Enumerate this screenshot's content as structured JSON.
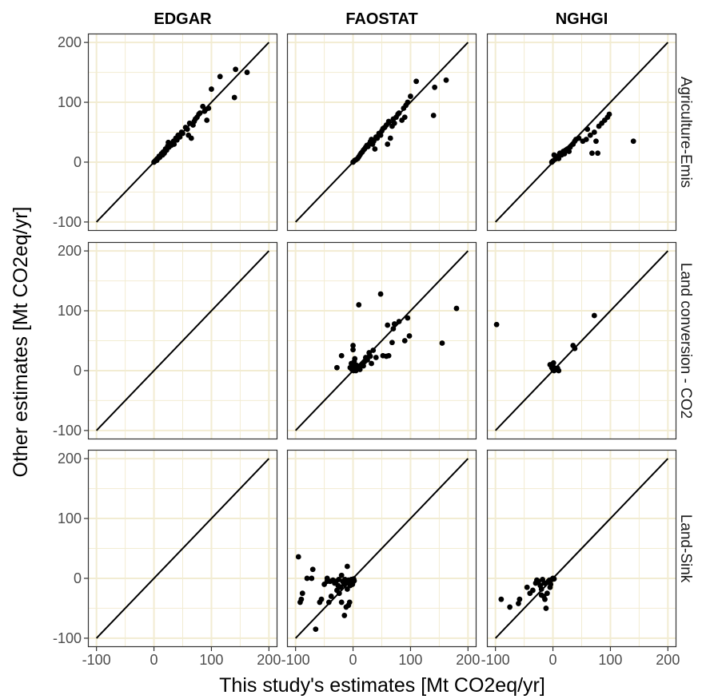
{
  "chart_data": {
    "type": "scatter",
    "xlabel": "This study's estimates [Mt CO2eq/yr]",
    "ylabel": "Other estimates [Mt CO2eq/yr]",
    "xlim": [
      -100,
      200
    ],
    "ylim": [
      -100,
      200
    ],
    "x_ticks": [
      -100,
      0,
      100,
      200
    ],
    "y_ticks": [
      -100,
      0,
      100,
      200
    ],
    "grid": true,
    "reference_line": "y = x",
    "columns": [
      "EDGAR",
      "FAOSTAT",
      "NGHGI"
    ],
    "rows": [
      "Agriculture-Emis",
      "Land conversion - CO2",
      "Land-Sink"
    ],
    "colors": {
      "grid": "#f2ecd2",
      "points": "#000000",
      "border": "#333333"
    },
    "panels": [
      {
        "row": 0,
        "col": 0,
        "points": [
          [
            0,
            0
          ],
          [
            2,
            2
          ],
          [
            4,
            4
          ],
          [
            5,
            3
          ],
          [
            6,
            6
          ],
          [
            8,
            7
          ],
          [
            9,
            10
          ],
          [
            10,
            8
          ],
          [
            12,
            11
          ],
          [
            13,
            14
          ],
          [
            15,
            12
          ],
          [
            16,
            17
          ],
          [
            18,
            15
          ],
          [
            20,
            22
          ],
          [
            22,
            20
          ],
          [
            24,
            27
          ],
          [
            25,
            33
          ],
          [
            26,
            25
          ],
          [
            28,
            30
          ],
          [
            30,
            28
          ],
          [
            32,
            32
          ],
          [
            34,
            35
          ],
          [
            35,
            30
          ],
          [
            38,
            40
          ],
          [
            40,
            37
          ],
          [
            42,
            45
          ],
          [
            45,
            42
          ],
          [
            48,
            50
          ],
          [
            50,
            48
          ],
          [
            55,
            58
          ],
          [
            58,
            55
          ],
          [
            60,
            45
          ],
          [
            62,
            65
          ],
          [
            65,
            40
          ],
          [
            68,
            62
          ],
          [
            70,
            68
          ],
          [
            72,
            72
          ],
          [
            75,
            75
          ],
          [
            78,
            80
          ],
          [
            80,
            82
          ],
          [
            85,
            93
          ],
          [
            88,
            85
          ],
          [
            90,
            88
          ],
          [
            92,
            70
          ],
          [
            95,
            90
          ],
          [
            100,
            122
          ],
          [
            115,
            143
          ],
          [
            140,
            108
          ],
          [
            142,
            155
          ],
          [
            162,
            150
          ]
        ]
      },
      {
        "row": 0,
        "col": 1,
        "points": [
          [
            0,
            0
          ],
          [
            3,
            3
          ],
          [
            5,
            4
          ],
          [
            8,
            6
          ],
          [
            10,
            9
          ],
          [
            12,
            12
          ],
          [
            14,
            15
          ],
          [
            16,
            17
          ],
          [
            18,
            20
          ],
          [
            20,
            22
          ],
          [
            22,
            25
          ],
          [
            24,
            28
          ],
          [
            26,
            26
          ],
          [
            28,
            30
          ],
          [
            30,
            34
          ],
          [
            32,
            38
          ],
          [
            34,
            30
          ],
          [
            36,
            35
          ],
          [
            38,
            22
          ],
          [
            40,
            42
          ],
          [
            42,
            40
          ],
          [
            45,
            48
          ],
          [
            48,
            45
          ],
          [
            50,
            52
          ],
          [
            52,
            56
          ],
          [
            55,
            58
          ],
          [
            58,
            62
          ],
          [
            60,
            30
          ],
          [
            62,
            68
          ],
          [
            65,
            40
          ],
          [
            68,
            60
          ],
          [
            70,
            72
          ],
          [
            72,
            65
          ],
          [
            75,
            75
          ],
          [
            78,
            80
          ],
          [
            80,
            82
          ],
          [
            85,
            70
          ],
          [
            88,
            90
          ],
          [
            90,
            75
          ],
          [
            92,
            95
          ],
          [
            95,
            100
          ],
          [
            100,
            110
          ],
          [
            110,
            135
          ],
          [
            140,
            78
          ],
          [
            142,
            125
          ],
          [
            162,
            137
          ]
        ]
      },
      {
        "row": 0,
        "col": 2,
        "points": [
          [
            -2,
            0
          ],
          [
            0,
            2
          ],
          [
            2,
            12
          ],
          [
            4,
            5
          ],
          [
            5,
            8
          ],
          [
            8,
            10
          ],
          [
            10,
            6
          ],
          [
            12,
            15
          ],
          [
            15,
            12
          ],
          [
            18,
            18
          ],
          [
            20,
            14
          ],
          [
            22,
            20
          ],
          [
            25,
            22
          ],
          [
            28,
            18
          ],
          [
            30,
            25
          ],
          [
            35,
            30
          ],
          [
            38,
            35
          ],
          [
            40,
            38
          ],
          [
            45,
            40
          ],
          [
            52,
            35
          ],
          [
            58,
            38
          ],
          [
            60,
            55
          ],
          [
            65,
            45
          ],
          [
            68,
            15
          ],
          [
            72,
            50
          ],
          [
            75,
            35
          ],
          [
            78,
            15
          ],
          [
            80,
            60
          ],
          [
            85,
            65
          ],
          [
            90,
            70
          ],
          [
            95,
            75
          ],
          [
            98,
            80
          ],
          [
            140,
            35
          ]
        ]
      },
      {
        "row": 1,
        "col": 0,
        "points": []
      },
      {
        "row": 1,
        "col": 1,
        "points": [
          [
            -28,
            5
          ],
          [
            -20,
            25
          ],
          [
            -5,
            5
          ],
          [
            -3,
            12
          ],
          [
            -2,
            2
          ],
          [
            -1,
            8
          ],
          [
            0,
            42
          ],
          [
            0,
            35
          ],
          [
            1,
            0
          ],
          [
            2,
            15
          ],
          [
            3,
            20
          ],
          [
            4,
            6
          ],
          [
            5,
            0
          ],
          [
            6,
            9
          ],
          [
            8,
            3
          ],
          [
            10,
            5
          ],
          [
            10,
            110
          ],
          [
            12,
            2
          ],
          [
            15,
            10
          ],
          [
            18,
            8
          ],
          [
            20,
            15
          ],
          [
            22,
            22
          ],
          [
            25,
            18
          ],
          [
            28,
            30
          ],
          [
            30,
            24
          ],
          [
            32,
            12
          ],
          [
            35,
            34
          ],
          [
            40,
            22
          ],
          [
            48,
            128
          ],
          [
            52,
            25
          ],
          [
            58,
            24
          ],
          [
            60,
            76
          ],
          [
            62,
            25
          ],
          [
            68,
            47
          ],
          [
            70,
            70
          ],
          [
            72,
            78
          ],
          [
            80,
            82
          ],
          [
            90,
            50
          ],
          [
            95,
            88
          ],
          [
            98,
            58
          ],
          [
            155,
            46
          ],
          [
            180,
            104
          ]
        ]
      },
      {
        "row": 1,
        "col": 2,
        "points": [
          [
            -98,
            77
          ],
          [
            -5,
            10
          ],
          [
            -2,
            5
          ],
          [
            0,
            2
          ],
          [
            0,
            8
          ],
          [
            1,
            13
          ],
          [
            2,
            0
          ],
          [
            3,
            4
          ],
          [
            5,
            2
          ],
          [
            8,
            4
          ],
          [
            10,
            0
          ],
          [
            35,
            42
          ],
          [
            38,
            37
          ],
          [
            72,
            92
          ]
        ]
      },
      {
        "row": 2,
        "col": 0,
        "points": []
      },
      {
        "row": 2,
        "col": 1,
        "points": [
          [
            -95,
            36
          ],
          [
            -92,
            -40
          ],
          [
            -90,
            -35
          ],
          [
            -88,
            -25
          ],
          [
            -80,
            0
          ],
          [
            -72,
            0
          ],
          [
            -70,
            15
          ],
          [
            -65,
            -85
          ],
          [
            -58,
            -40
          ],
          [
            -55,
            -35
          ],
          [
            -50,
            -10
          ],
          [
            -45,
            0
          ],
          [
            -42,
            -40
          ],
          [
            -40,
            -5
          ],
          [
            -38,
            -30
          ],
          [
            -35,
            -3
          ],
          [
            -32,
            -8
          ],
          [
            -30,
            -5
          ],
          [
            -28,
            -20
          ],
          [
            -26,
            -12
          ],
          [
            -25,
            -2
          ],
          [
            -24,
            -25
          ],
          [
            -22,
            -15
          ],
          [
            -20,
            -40
          ],
          [
            -18,
            -5
          ],
          [
            -16,
            -10
          ],
          [
            -15,
            -62
          ],
          [
            -14,
            -2
          ],
          [
            -12,
            -8
          ],
          [
            -10,
            -18
          ],
          [
            -8,
            -3
          ],
          [
            -6,
            -40
          ],
          [
            -5,
            -12
          ],
          [
            -4,
            -7
          ],
          [
            -3,
            -2
          ],
          [
            -2,
            -5
          ],
          [
            -1,
            -10
          ],
          [
            0,
            -3
          ],
          [
            0,
            -6
          ],
          [
            1,
            -1
          ],
          [
            2,
            -4
          ],
          [
            -10,
            20
          ],
          [
            -12,
            -48
          ],
          [
            -8,
            -45
          ],
          [
            -20,
            5
          ],
          [
            -45,
            -5
          ]
        ]
      },
      {
        "row": 2,
        "col": 2,
        "points": [
          [
            -90,
            -35
          ],
          [
            -75,
            -48
          ],
          [
            -60,
            -42
          ],
          [
            -58,
            -35
          ],
          [
            -45,
            -15
          ],
          [
            -40,
            -25
          ],
          [
            -35,
            -20
          ],
          [
            -30,
            -8
          ],
          [
            -28,
            -3
          ],
          [
            -25,
            -5
          ],
          [
            -22,
            -12
          ],
          [
            -20,
            -18
          ],
          [
            -18,
            -2
          ],
          [
            -16,
            -30
          ],
          [
            -15,
            -8
          ],
          [
            -14,
            -35
          ],
          [
            -12,
            -50
          ],
          [
            -10,
            -25
          ],
          [
            -8,
            -5
          ],
          [
            -6,
            -3
          ],
          [
            -4,
            -10
          ],
          [
            -2,
            -2
          ],
          [
            0,
            0
          ],
          [
            2,
            -1
          ],
          [
            -5,
            -15
          ],
          [
            -20,
            -28
          ]
        ]
      }
    ]
  }
}
